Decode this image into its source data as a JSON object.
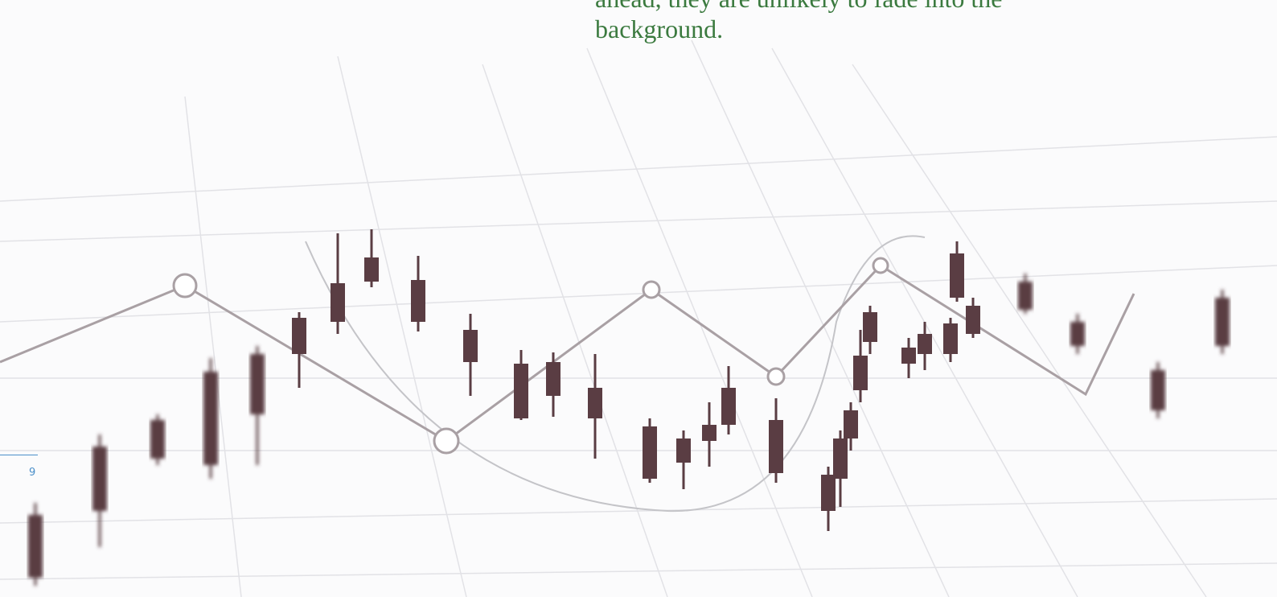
{
  "body": {
    "lines": [
      "ahead, they are unlikely to fade into the",
      "background."
    ]
  },
  "footer": {
    "page_number": "9"
  }
}
